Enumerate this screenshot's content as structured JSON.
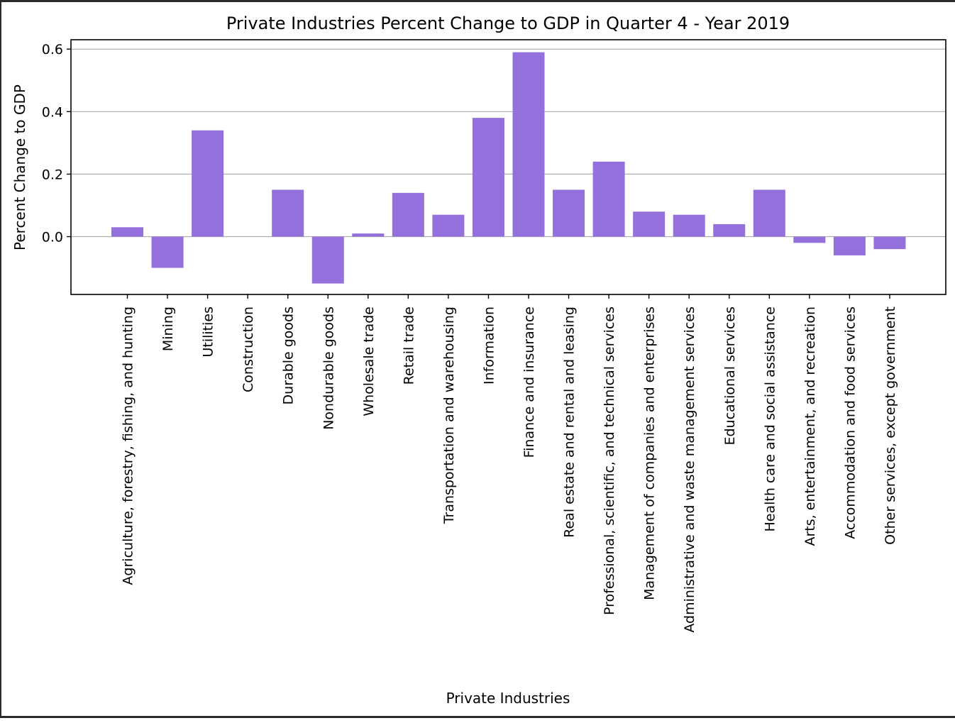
{
  "chart_data": {
    "type": "bar",
    "title": "Private Industries Percent Change to GDP in Quarter 4 - Year 2019",
    "xlabel": "Private Industries",
    "ylabel": "Percent Change to GDP",
    "ylim": [
      -0.185,
      0.63
    ],
    "yticks": [
      0.0,
      0.2,
      0.4,
      0.6
    ],
    "ytick_labels": [
      "0.0",
      "0.2",
      "0.4",
      "0.6"
    ],
    "grid": "horizontal",
    "bar_color": "#9370DB",
    "grid_color": "#b0b0b0",
    "categories": [
      "Agriculture, forestry, fishing, and hunting",
      "Mining",
      "Utilities",
      "Construction",
      "Durable goods",
      "Nondurable goods",
      "Wholesale trade",
      "Retail trade",
      "Transportation and warehousing",
      "Information",
      "Finance and insurance",
      "Real estate and rental and leasing",
      "Professional, scientific, and technical services",
      "Management of companies and enterprises",
      "Administrative and waste management services",
      "Educational services",
      "Health care and social assistance",
      "Arts, entertainment, and recreation",
      "Accommodation and food services",
      "Other services, except government"
    ],
    "values": [
      0.03,
      -0.1,
      0.34,
      0.0,
      0.15,
      -0.15,
      0.01,
      0.14,
      0.07,
      0.38,
      0.59,
      0.15,
      0.24,
      0.08,
      0.07,
      0.04,
      0.15,
      -0.02,
      -0.06,
      -0.04
    ]
  }
}
